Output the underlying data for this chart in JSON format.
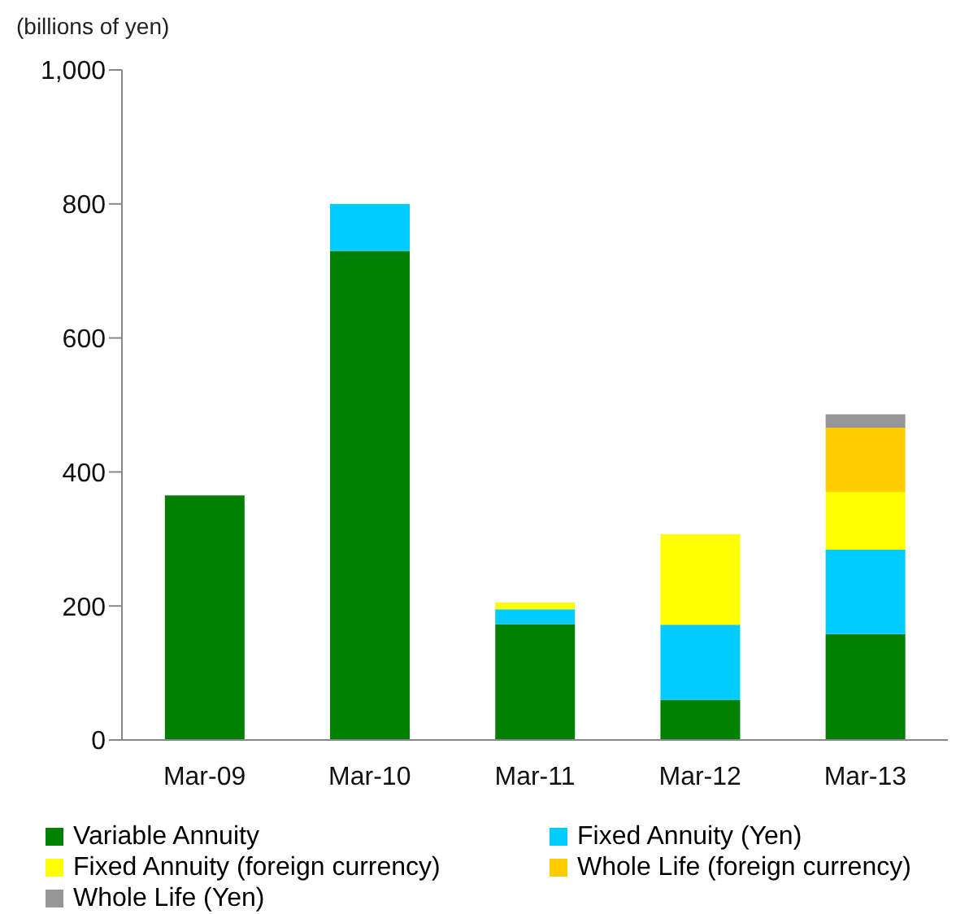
{
  "chart_data": {
    "type": "bar",
    "ylabel": "(billions of yen)",
    "stacked": true,
    "categories": [
      "Mar-09",
      "Mar-10",
      "Mar-11",
      "Mar-12",
      "Mar-13"
    ],
    "series": [
      {
        "name": "Variable Annuity",
        "color": "#008000",
        "values": [
          365,
          730,
          173,
          60,
          158
        ]
      },
      {
        "name": "Fixed Annuity (Yen)",
        "color": "#00ccff",
        "values": [
          null,
          70,
          22,
          112,
          126
        ]
      },
      {
        "name": "Fixed Annuity (foreign currency)",
        "color": "#ffff00",
        "values": [
          null,
          null,
          10,
          135,
          86
        ]
      },
      {
        "name": "Whole Life (foreign currency)",
        "color": "#ffcc00",
        "values": [
          null,
          null,
          null,
          null,
          96
        ]
      },
      {
        "name": "Whole Life (Yen)",
        "color": "#969696",
        "values": [
          null,
          null,
          null,
          null,
          20
        ]
      }
    ],
    "ylim": [
      0,
      1000
    ],
    "yticks": [
      0,
      200,
      400,
      600,
      800,
      {
        "value": 1000,
        "label": "1,000"
      }
    ],
    "grid": false,
    "legend": "bottom"
  }
}
